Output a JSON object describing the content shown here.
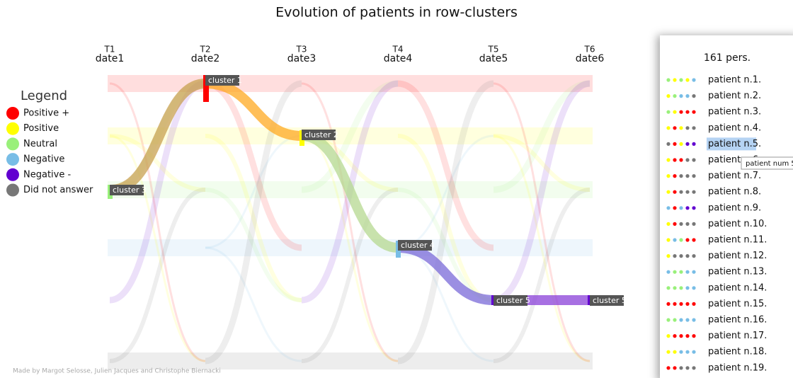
{
  "header": {
    "title": "Evolution of patients in row-clusters"
  },
  "timepoints": [
    {
      "name": "T1",
      "date": "date1"
    },
    {
      "name": "T2",
      "date": "date2"
    },
    {
      "name": "T3",
      "date": "date3"
    },
    {
      "name": "T4",
      "date": "date4"
    },
    {
      "name": "T5",
      "date": "date5"
    },
    {
      "name": "T6",
      "date": "date6"
    }
  ],
  "legend": {
    "title": "Legend",
    "items": [
      {
        "label": "Positive +",
        "color": "#ff0000"
      },
      {
        "label": "Positive",
        "color": "#ffff00"
      },
      {
        "label": "Neutral",
        "color": "#99f07a"
      },
      {
        "label": "Negative",
        "color": "#78bde6"
      },
      {
        "label": "Negative -",
        "color": "#6200d0"
      },
      {
        "label": "Did not answer",
        "color": "#777777"
      }
    ]
  },
  "clusters": [
    "cluster 3",
    "cluster 1",
    "cluster 2",
    "cluster 4",
    "cluster 5",
    "cluster 5"
  ],
  "panel": {
    "count": "161 pers.",
    "patients": [
      {
        "label": "patient n.1.",
        "dots": [
          "#99f07a",
          "#ffff00",
          "#99f07a",
          "#ffff00",
          "#78bde6"
        ]
      },
      {
        "label": "patient n.2.",
        "dots": [
          "#ffff00",
          "#99f07a",
          "#78bde6",
          "#78bde6",
          "#777777"
        ]
      },
      {
        "label": "patient n.3.",
        "dots": [
          "#99f07a",
          "#ffff00",
          "#ff0000",
          "#ff0000",
          "#ff0000"
        ]
      },
      {
        "label": "patient n.4.",
        "dots": [
          "#ffff00",
          "#ff0000",
          "#ffff00",
          "#777777",
          "#777777"
        ]
      },
      {
        "label": "patient n.5.",
        "dots": [
          "#777777",
          "#ff0000",
          "#ffff00",
          "#6200d0",
          "#6200d0"
        ]
      },
      {
        "label": "patient n.6.",
        "dots": [
          "#ffff00",
          "#ff0000",
          "#ff0000",
          "#777777",
          "#777777"
        ]
      },
      {
        "label": "patient n.7.",
        "dots": [
          "#ffff00",
          "#ff0000",
          "#777777",
          "#777777",
          "#777777"
        ]
      },
      {
        "label": "patient n.8.",
        "dots": [
          "#ffff00",
          "#ff0000",
          "#777777",
          "#777777",
          "#777777"
        ]
      },
      {
        "label": "patient n.9.",
        "dots": [
          "#78bde6",
          "#ff0000",
          "#78bde6",
          "#6200d0",
          "#6200d0"
        ]
      },
      {
        "label": "patient n.10.",
        "dots": [
          "#ffff00",
          "#ff0000",
          "#777777",
          "#777777",
          "#777777"
        ]
      },
      {
        "label": "patient n.11.",
        "dots": [
          "#ffff00",
          "#78bde6",
          "#99f07a",
          "#ff0000",
          "#ff0000"
        ]
      },
      {
        "label": "patient n.12.",
        "dots": [
          "#ffff00",
          "#777777",
          "#777777",
          "#777777",
          "#777777"
        ]
      },
      {
        "label": "patient n.13.",
        "dots": [
          "#78bde6",
          "#99f07a",
          "#99f07a",
          "#78bde6",
          "#78bde6"
        ]
      },
      {
        "label": "patient n.14.",
        "dots": [
          "#99f07a",
          "#99f07a",
          "#99f07a",
          "#78bde6",
          "#78bde6"
        ]
      },
      {
        "label": "patient n.15.",
        "dots": [
          "#ff0000",
          "#ff0000",
          "#ff0000",
          "#ff0000",
          "#ff0000"
        ]
      },
      {
        "label": "patient n.16.",
        "dots": [
          "#99f07a",
          "#99f07a",
          "#78bde6",
          "#78bde6",
          "#78bde6"
        ]
      },
      {
        "label": "patient n.17.",
        "dots": [
          "#ffff00",
          "#ff0000",
          "#ff0000",
          "#ff0000",
          "#ff0000"
        ]
      },
      {
        "label": "patient n.18.",
        "dots": [
          "#ffff00",
          "#ffff00",
          "#78bde6",
          "#78bde6",
          "#78bde6"
        ]
      },
      {
        "label": "patient n.19.",
        "dots": [
          "#ff0000",
          "#ff0000",
          "#777777",
          "#777777",
          "#777777"
        ]
      }
    ]
  },
  "tooltip": "patient num 5",
  "footer": "Made by Margot Selosse, Julien Jacques and Christophe Biernacki"
}
